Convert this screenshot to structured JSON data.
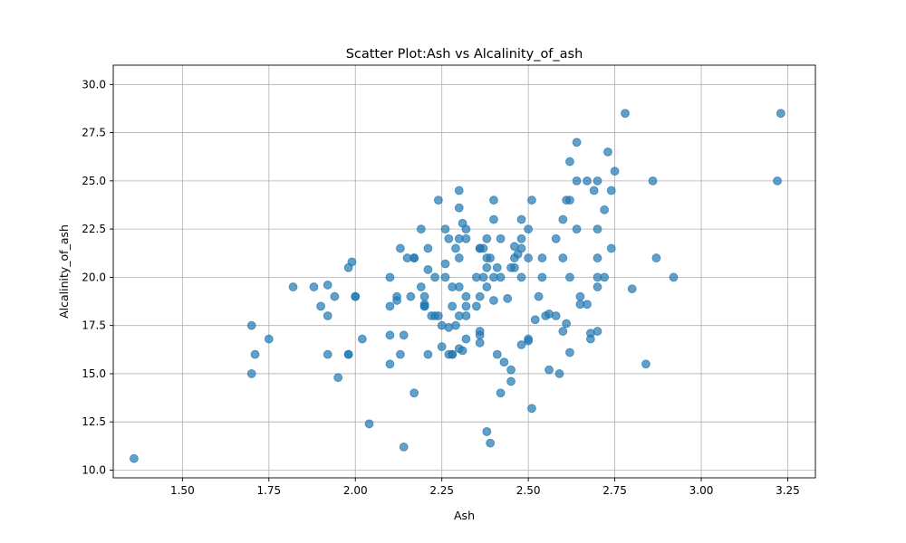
{
  "chart_data": {
    "type": "scatter",
    "title": "Scatter Plot:Ash vs Alcalinity_of_ash",
    "xlabel": "Ash",
    "ylabel": "Alcalinity_of_ash",
    "xlim": [
      1.3,
      3.33
    ],
    "ylim": [
      9.6,
      31.0
    ],
    "xticks": [
      "1.50",
      "1.75",
      "2.00",
      "2.25",
      "2.50",
      "2.75",
      "3.00",
      "3.25"
    ],
    "yticks": [
      "10.0",
      "12.5",
      "15.0",
      "17.5",
      "20.0",
      "22.5",
      "25.0",
      "27.5",
      "30.0"
    ],
    "xtick_values": [
      1.5,
      1.75,
      2.0,
      2.25,
      2.5,
      2.75,
      3.0,
      3.25
    ],
    "ytick_values": [
      10.0,
      12.5,
      15.0,
      17.5,
      20.0,
      22.5,
      25.0,
      27.5,
      30.0
    ],
    "grid": true,
    "point_color": "#1f77b4",
    "x": [
      1.36,
      1.7,
      1.7,
      1.71,
      1.75,
      1.82,
      1.88,
      1.9,
      1.92,
      1.92,
      1.92,
      1.94,
      1.95,
      1.98,
      1.98,
      1.98,
      1.99,
      2.0,
      2.0,
      2.02,
      2.04,
      2.1,
      2.1,
      2.1,
      2.1,
      2.12,
      2.12,
      2.13,
      2.13,
      2.14,
      2.14,
      2.15,
      2.16,
      2.17,
      2.17,
      2.17,
      2.19,
      2.19,
      2.2,
      2.2,
      2.2,
      2.2,
      2.21,
      2.21,
      2.21,
      2.22,
      2.23,
      2.23,
      2.24,
      2.24,
      2.25,
      2.25,
      2.26,
      2.26,
      2.26,
      2.27,
      2.27,
      2.27,
      2.28,
      2.28,
      2.28,
      2.28,
      2.29,
      2.29,
      2.3,
      2.3,
      2.3,
      2.3,
      2.3,
      2.3,
      2.3,
      2.31,
      2.31,
      2.32,
      2.32,
      2.32,
      2.32,
      2.32,
      2.32,
      2.35,
      2.35,
      2.36,
      2.36,
      2.36,
      2.36,
      2.36,
      2.36,
      2.37,
      2.37,
      2.38,
      2.38,
      2.38,
      2.38,
      2.38,
      2.39,
      2.39,
      2.4,
      2.4,
      2.4,
      2.4,
      2.41,
      2.41,
      2.42,
      2.42,
      2.42,
      2.43,
      2.44,
      2.45,
      2.45,
      2.45,
      2.46,
      2.46,
      2.46,
      2.47,
      2.48,
      2.48,
      2.48,
      2.48,
      2.48,
      2.5,
      2.5,
      2.5,
      2.5,
      2.51,
      2.51,
      2.52,
      2.53,
      2.54,
      2.54,
      2.55,
      2.56,
      2.56,
      2.58,
      2.58,
      2.59,
      2.6,
      2.6,
      2.6,
      2.61,
      2.61,
      2.62,
      2.62,
      2.62,
      2.62,
      2.64,
      2.64,
      2.64,
      2.65,
      2.65,
      2.67,
      2.67,
      2.68,
      2.68,
      2.69,
      2.7,
      2.7,
      2.7,
      2.7,
      2.7,
      2.7,
      2.72,
      2.72,
      2.73,
      2.74,
      2.74,
      2.75,
      2.78,
      2.8,
      2.84,
      2.86,
      2.87,
      2.92,
      3.22,
      3.23
    ],
    "y": [
      10.6,
      17.5,
      15.0,
      16.0,
      16.8,
      19.5,
      19.5,
      18.5,
      19.6,
      18.0,
      16.0,
      19.0,
      14.8,
      20.5,
      16.0,
      16.0,
      20.8,
      19.0,
      19.0,
      16.8,
      12.4,
      20.0,
      18.5,
      17.0,
      15.5,
      19.0,
      18.8,
      21.5,
      16.0,
      17.0,
      11.2,
      21.0,
      19.0,
      21.0,
      21.0,
      14.0,
      22.5,
      19.5,
      19.0,
      18.6,
      18.5,
      18.5,
      21.5,
      20.4,
      16.0,
      18.0,
      18.0,
      20.0,
      18.0,
      24.0,
      17.5,
      16.4,
      22.5,
      20.7,
      20.0,
      17.4,
      22.0,
      16.0,
      19.5,
      18.5,
      16.0,
      16.0,
      21.5,
      17.5,
      24.5,
      23.6,
      22.0,
      21.0,
      19.5,
      18.0,
      16.3,
      22.8,
      16.2,
      22.5,
      22.0,
      19.0,
      18.5,
      18.0,
      16.8,
      20.0,
      18.5,
      21.5,
      21.5,
      19.0,
      17.2,
      17.0,
      16.6,
      20.0,
      21.5,
      22.0,
      21.0,
      19.5,
      20.5,
      12.0,
      21.0,
      11.4,
      24.0,
      23.0,
      20.0,
      18.8,
      20.5,
      16.0,
      22.0,
      20.0,
      14.0,
      15.6,
      18.9,
      20.5,
      15.2,
      14.6,
      21.6,
      21.0,
      20.5,
      21.2,
      23.0,
      22.0,
      21.5,
      20.0,
      16.5,
      22.5,
      21.0,
      16.8,
      16.7,
      24.0,
      13.2,
      17.8,
      19.0,
      21.0,
      20.0,
      18.0,
      18.1,
      15.2,
      22.0,
      18.0,
      15.0,
      23.0,
      21.0,
      17.2,
      24.0,
      17.6,
      20.0,
      26.0,
      24.0,
      16.1,
      27.0,
      25.0,
      22.5,
      19.0,
      18.6,
      25.0,
      18.6,
      17.1,
      16.8,
      24.5,
      25.0,
      22.5,
      21.0,
      20.0,
      19.5,
      17.2,
      23.5,
      20.0,
      26.5,
      24.5,
      21.5,
      25.5,
      28.5,
      19.4,
      15.5,
      25.0,
      21.0,
      20.0,
      25.0,
      28.5
    ]
  }
}
